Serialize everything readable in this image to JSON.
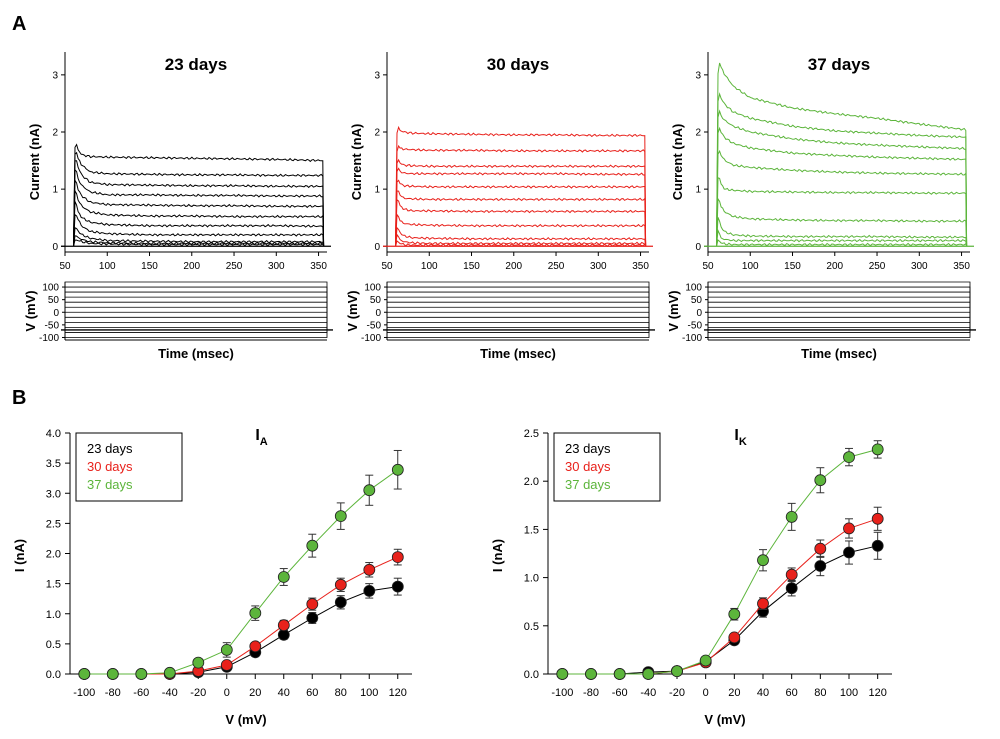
{
  "panel_letters": [
    "A",
    "B"
  ],
  "chart_data": [
    {
      "type": "line",
      "title": "23 days",
      "xlabel": "Time (msec)",
      "ylabel": "Current (nA)",
      "xlim": [
        50,
        360
      ],
      "ylim": [
        -0.1,
        3.4
      ],
      "xticks": [
        50,
        100,
        150,
        200,
        250,
        300,
        350
      ],
      "yticks": [
        0,
        1,
        2,
        3
      ],
      "color": "#000000",
      "trace_x": [
        60,
        62,
        65,
        70,
        80,
        100,
        150,
        200,
        250,
        300,
        355
      ],
      "traces": [
        [
          0,
          0.12,
          0.1,
          0.08,
          0.05,
          0.04,
          0.03,
          0.03,
          0.03,
          0.03,
          0.03
        ],
        [
          0,
          0.2,
          0.16,
          0.12,
          0.08,
          0.06,
          0.05,
          0.05,
          0.05,
          0.05,
          0.05
        ],
        [
          0,
          0.35,
          0.28,
          0.2,
          0.14,
          0.1,
          0.09,
          0.08,
          0.08,
          0.08,
          0.08
        ],
        [
          0,
          0.6,
          0.48,
          0.35,
          0.26,
          0.22,
          0.2,
          0.2,
          0.2,
          0.2,
          0.2
        ],
        [
          0,
          0.85,
          0.62,
          0.5,
          0.42,
          0.38,
          0.36,
          0.36,
          0.36,
          0.36,
          0.35
        ],
        [
          0,
          1.05,
          0.82,
          0.7,
          0.6,
          0.55,
          0.53,
          0.53,
          0.52,
          0.52,
          0.52
        ],
        [
          0,
          1.25,
          1.0,
          0.88,
          0.77,
          0.73,
          0.72,
          0.71,
          0.71,
          0.7,
          0.7
        ],
        [
          0,
          1.45,
          1.2,
          1.06,
          0.95,
          0.9,
          0.9,
          0.89,
          0.89,
          0.88,
          0.88
        ],
        [
          0,
          1.62,
          1.4,
          1.24,
          1.12,
          1.08,
          1.07,
          1.06,
          1.06,
          1.05,
          1.05
        ],
        [
          0,
          1.75,
          1.55,
          1.42,
          1.3,
          1.27,
          1.26,
          1.25,
          1.25,
          1.24,
          1.24
        ],
        [
          0,
          1.88,
          1.7,
          1.6,
          1.57,
          1.56,
          1.55,
          1.54,
          1.53,
          1.52,
          1.5
        ]
      ],
      "voltage_panel": {
        "ylabel": "V (mV)",
        "yticks": [
          100,
          50,
          0,
          -50,
          -100
        ],
        "ylim": [
          -110,
          120
        ],
        "holding": -70,
        "steps": [
          -100,
          -80,
          -60,
          -40,
          -20,
          0,
          20,
          40,
          60,
          80,
          100,
          120
        ]
      }
    },
    {
      "type": "line",
      "title": "30 days",
      "xlabel": "Time (msec)",
      "ylabel": "Current (nA)",
      "xlim": [
        50,
        360
      ],
      "ylim": [
        -0.1,
        3.4
      ],
      "xticks": [
        50,
        100,
        150,
        200,
        250,
        300,
        350
      ],
      "yticks": [
        0,
        1,
        2,
        3
      ],
      "color": "#e8211b",
      "trace_x": [
        60,
        62,
        65,
        70,
        80,
        100,
        150,
        200,
        250,
        300,
        355
      ],
      "traces": [
        [
          0,
          0.1,
          0.05,
          0.03,
          0.02,
          0.02,
          0.02,
          0.02,
          0.02,
          0.02,
          0.02
        ],
        [
          0,
          0.22,
          0.12,
          0.08,
          0.06,
          0.05,
          0.05,
          0.05,
          0.05,
          0.05,
          0.05
        ],
        [
          0,
          0.35,
          0.25,
          0.18,
          0.15,
          0.14,
          0.13,
          0.13,
          0.13,
          0.13,
          0.13
        ],
        [
          0,
          0.6,
          0.45,
          0.4,
          0.38,
          0.37,
          0.36,
          0.36,
          0.36,
          0.36,
          0.36
        ],
        [
          0,
          0.88,
          0.72,
          0.65,
          0.62,
          0.62,
          0.61,
          0.61,
          0.61,
          0.61,
          0.61
        ],
        [
          0,
          1.05,
          0.9,
          0.84,
          0.83,
          0.82,
          0.82,
          0.82,
          0.82,
          0.82,
          0.82
        ],
        [
          0,
          1.22,
          1.1,
          1.06,
          1.05,
          1.04,
          1.04,
          1.04,
          1.04,
          1.04,
          1.04
        ],
        [
          0,
          1.42,
          1.32,
          1.28,
          1.27,
          1.27,
          1.27,
          1.27,
          1.27,
          1.26,
          1.26
        ],
        [
          0,
          1.58,
          1.46,
          1.42,
          1.41,
          1.4,
          1.4,
          1.4,
          1.4,
          1.4,
          1.4
        ],
        [
          0,
          1.8,
          1.72,
          1.7,
          1.69,
          1.68,
          1.68,
          1.67,
          1.67,
          1.67,
          1.67
        ],
        [
          0,
          2.15,
          2.03,
          2.0,
          1.98,
          1.97,
          1.96,
          1.95,
          1.95,
          1.94,
          1.94
        ]
      ],
      "voltage_panel": {
        "ylabel": "V (mV)",
        "yticks": [
          100,
          50,
          0,
          -50,
          -100
        ],
        "ylim": [
          -110,
          120
        ],
        "holding": -70,
        "steps": [
          -100,
          -80,
          -60,
          -40,
          -20,
          0,
          20,
          40,
          60,
          80,
          100,
          120
        ]
      }
    },
    {
      "type": "line",
      "title": "37 days",
      "xlabel": "Time (msec)",
      "ylabel": "Current (nA)",
      "xlim": [
        50,
        360
      ],
      "ylim": [
        -0.1,
        3.4
      ],
      "xticks": [
        50,
        100,
        150,
        200,
        250,
        300,
        350
      ],
      "yticks": [
        0,
        1,
        2,
        3
      ],
      "color": "#5cb53b",
      "trace_x": [
        60,
        62,
        65,
        70,
        80,
        100,
        150,
        200,
        250,
        300,
        355
      ],
      "traces": [
        [
          0,
          0.12,
          0.06,
          0.04,
          0.03,
          0.03,
          0.03,
          0.03,
          0.03,
          0.03,
          0.03
        ],
        [
          0,
          0.3,
          0.15,
          0.12,
          0.1,
          0.1,
          0.1,
          0.1,
          0.1,
          0.1,
          0.1
        ],
        [
          0,
          0.55,
          0.35,
          0.25,
          0.2,
          0.18,
          0.17,
          0.17,
          0.17,
          0.16,
          0.16
        ],
        [
          0,
          0.9,
          0.7,
          0.6,
          0.52,
          0.48,
          0.46,
          0.45,
          0.45,
          0.44,
          0.44
        ],
        [
          0,
          1.3,
          1.1,
          1.0,
          0.98,
          0.96,
          0.95,
          0.94,
          0.94,
          0.93,
          0.93
        ],
        [
          0,
          1.75,
          1.6,
          1.5,
          1.42,
          1.38,
          1.33,
          1.3,
          1.28,
          1.27,
          1.26
        ],
        [
          0,
          2.15,
          2.0,
          1.9,
          1.8,
          1.72,
          1.63,
          1.59,
          1.56,
          1.54,
          1.52
        ],
        [
          0,
          2.45,
          2.3,
          2.2,
          2.1,
          2.0,
          1.88,
          1.81,
          1.77,
          1.74,
          1.71
        ],
        [
          0,
          2.75,
          2.6,
          2.48,
          2.35,
          2.24,
          2.1,
          2.02,
          1.98,
          1.94,
          1.91
        ],
        [
          0,
          3.28,
          3.15,
          3.0,
          2.8,
          2.6,
          2.42,
          2.32,
          2.24,
          2.14,
          2.04
        ]
      ],
      "voltage_panel": {
        "ylabel": "V (mV)",
        "yticks": [
          100,
          50,
          0,
          -50,
          -100
        ],
        "ylim": [
          -110,
          120
        ],
        "holding": -70,
        "steps": [
          -100,
          -80,
          -60,
          -40,
          -20,
          0,
          20,
          40,
          60,
          80,
          100,
          120
        ]
      }
    },
    {
      "type": "line",
      "title": "I",
      "title_sub": "A",
      "xlabel": "V (mV)",
      "ylabel": "I (nA)",
      "xlim": [
        -110,
        130
      ],
      "ylim": [
        0,
        4.0
      ],
      "xticks": [
        -100,
        -80,
        -60,
        -40,
        -20,
        0,
        20,
        40,
        60,
        80,
        100,
        120
      ],
      "yticks": [
        "0.0",
        "0.5",
        "1.0",
        "1.5",
        "2.0",
        "2.5",
        "3.0",
        "3.5",
        "4.0"
      ],
      "legend": "top-left",
      "x": [
        -100,
        -80,
        -60,
        -40,
        -20,
        0,
        20,
        40,
        60,
        80,
        100,
        120
      ],
      "series": [
        {
          "name": "23 days",
          "color": "#000000",
          "values": [
            0,
            0,
            0,
            0,
            0.03,
            0.12,
            0.36,
            0.65,
            0.93,
            1.19,
            1.38,
            1.45
          ],
          "errors": [
            0,
            0,
            0,
            0,
            0.02,
            0.04,
            0.05,
            0.07,
            0.09,
            0.11,
            0.12,
            0.14
          ]
        },
        {
          "name": "30 days",
          "color": "#e8211b",
          "values": [
            0,
            0,
            0,
            0,
            0.05,
            0.15,
            0.46,
            0.81,
            1.16,
            1.48,
            1.73,
            1.94
          ],
          "errors": [
            0,
            0,
            0,
            0,
            0.02,
            0.05,
            0.06,
            0.08,
            0.1,
            0.11,
            0.12,
            0.13
          ]
        },
        {
          "name": "37 days",
          "color": "#5cb53b",
          "values": [
            0,
            0,
            0,
            0.02,
            0.19,
            0.4,
            1.01,
            1.61,
            2.13,
            2.62,
            3.05,
            3.39
          ],
          "errors": [
            0,
            0,
            0,
            0.02,
            0.05,
            0.12,
            0.12,
            0.14,
            0.19,
            0.22,
            0.25,
            0.32
          ]
        }
      ]
    },
    {
      "type": "line",
      "title": "I",
      "title_sub": "K",
      "xlabel": "V (mV)",
      "ylabel": "I (nA)",
      "xlim": [
        -110,
        130
      ],
      "ylim": [
        0,
        2.5
      ],
      "xticks": [
        -100,
        -80,
        -60,
        -40,
        -20,
        0,
        20,
        40,
        60,
        80,
        100,
        120
      ],
      "yticks": [
        "0.0",
        "0.5",
        "1.0",
        "1.5",
        "2.0",
        "2.5"
      ],
      "legend": "top-left",
      "x": [
        -100,
        -80,
        -60,
        -40,
        -20,
        0,
        20,
        40,
        60,
        80,
        100,
        120
      ],
      "series": [
        {
          "name": "23 days",
          "color": "#000000",
          "values": [
            0,
            0,
            0,
            0.02,
            0.03,
            0.13,
            0.35,
            0.65,
            0.89,
            1.12,
            1.26,
            1.33
          ],
          "errors": [
            0,
            0,
            0,
            0.01,
            0.02,
            0.03,
            0.04,
            0.06,
            0.08,
            0.1,
            0.12,
            0.14
          ]
        },
        {
          "name": "30 days",
          "color": "#e8211b",
          "values": [
            0,
            0,
            0,
            0,
            0.03,
            0.12,
            0.38,
            0.73,
            1.03,
            1.3,
            1.51,
            1.61
          ],
          "errors": [
            0,
            0,
            0,
            0,
            0.02,
            0.03,
            0.04,
            0.06,
            0.07,
            0.09,
            0.1,
            0.12
          ]
        },
        {
          "name": "37 days",
          "color": "#5cb53b",
          "values": [
            0,
            0,
            0,
            0,
            0.03,
            0.14,
            0.62,
            1.18,
            1.63,
            2.01,
            2.25,
            2.33
          ],
          "errors": [
            0,
            0,
            0,
            0,
            0.02,
            0.04,
            0.06,
            0.11,
            0.14,
            0.13,
            0.09,
            0.09
          ]
        }
      ]
    }
  ]
}
